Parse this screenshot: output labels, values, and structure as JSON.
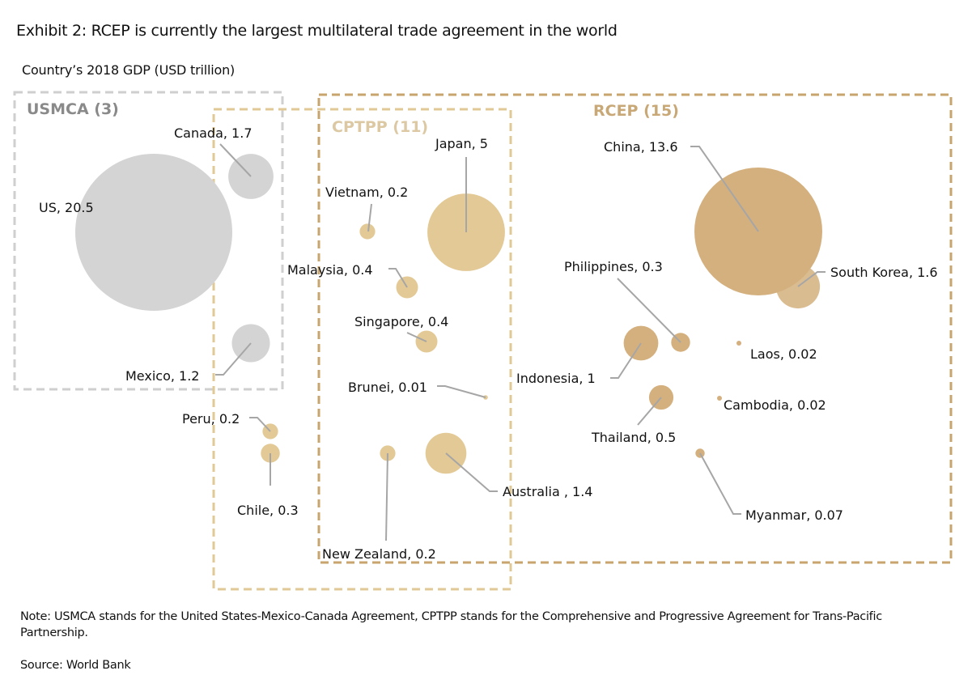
{
  "title": "Exhibit 2: RCEP is currently the largest multilateral trade agreement in the world",
  "subtitle": "Country’s 2018 GDP (USD trillion)",
  "note": "Note: USMCA stands for the United States-Mexico-Canada Agreement, CPTPP stands for the Comprehensive and Progressive Agreement for Trans-Pacific Partnership.",
  "source": "Source: World Bank",
  "colors": {
    "usmca": "#d4d4d4",
    "usmca_border": "#cfcfcf",
    "usmca_label": "#8a8a8a",
    "cptpp": "#e2c995",
    "cptpp_border": "#e0c897",
    "cptpp_label": "#dcc9a4",
    "rcep": "#d4b07e",
    "rcep_border": "#c8a56e",
    "rcep_label": "#c9a877",
    "leader": "#a6a6a6",
    "text": "#111111"
  },
  "chart_data": {
    "type": "bubble",
    "title": "Exhibit 2: RCEP is currently the largest multilateral trade agreement in the world",
    "size_label": "Country’s 2018 GDP (USD trillion)",
    "groups": [
      {
        "id": "usmca",
        "label": "USMCA (3)",
        "members": 3
      },
      {
        "id": "cptpp",
        "label": "CPTPP (11)",
        "members": 11
      },
      {
        "id": "rcep",
        "label": "RCEP (15)",
        "members": 15
      }
    ],
    "points": [
      {
        "country": "US",
        "gdp": 20.5,
        "label": "US, 20.5",
        "group": "usmca"
      },
      {
        "country": "Canada",
        "gdp": 1.7,
        "label": "Canada, 1.7",
        "group": "usmca"
      },
      {
        "country": "Mexico",
        "gdp": 1.2,
        "label": "Mexico, 1.2",
        "group": "usmca"
      },
      {
        "country": "Peru",
        "gdp": 0.2,
        "label": "Peru, 0.2",
        "group": "cptpp"
      },
      {
        "country": "Chile",
        "gdp": 0.3,
        "label": "Chile, 0.3",
        "group": "cptpp"
      },
      {
        "country": "Japan",
        "gdp": 5,
        "label": "Japan, 5",
        "group": "cptpp"
      },
      {
        "country": "Vietnam",
        "gdp": 0.2,
        "label": "Vietnam, 0.2",
        "group": "cptpp"
      },
      {
        "country": "Malaysia",
        "gdp": 0.4,
        "label": "Malaysia, 0.4",
        "group": "cptpp"
      },
      {
        "country": "Singapore",
        "gdp": 0.4,
        "label": "Singapore, 0.4",
        "group": "cptpp"
      },
      {
        "country": "Brunei",
        "gdp": 0.01,
        "label": "Brunei, 0.01",
        "group": "cptpp"
      },
      {
        "country": "New Zealand",
        "gdp": 0.2,
        "label": "New Zealand, 0.2",
        "group": "cptpp"
      },
      {
        "country": "Australia",
        "gdp": 1.4,
        "label": "Australia , 1.4",
        "group": "cptpp"
      },
      {
        "country": "China",
        "gdp": 13.6,
        "label": "China, 13.6",
        "group": "rcep"
      },
      {
        "country": "South Korea",
        "gdp": 1.6,
        "label": "South Korea, 1.6",
        "group": "rcep"
      },
      {
        "country": "Philippines",
        "gdp": 0.3,
        "label": "Philippines, 0.3",
        "group": "rcep"
      },
      {
        "country": "Indonesia",
        "gdp": 1,
        "label": "Indonesia, 1",
        "group": "rcep"
      },
      {
        "country": "Laos",
        "gdp": 0.02,
        "label": "Laos, 0.02",
        "group": "rcep"
      },
      {
        "country": "Thailand",
        "gdp": 0.5,
        "label": "Thailand, 0.5",
        "group": "rcep"
      },
      {
        "country": "Cambodia",
        "gdp": 0.02,
        "label": "Cambodia, 0.02",
        "group": "rcep"
      },
      {
        "country": "Myanmar",
        "gdp": 0.07,
        "label": "Myanmar, 0.07",
        "group": "rcep"
      }
    ]
  }
}
